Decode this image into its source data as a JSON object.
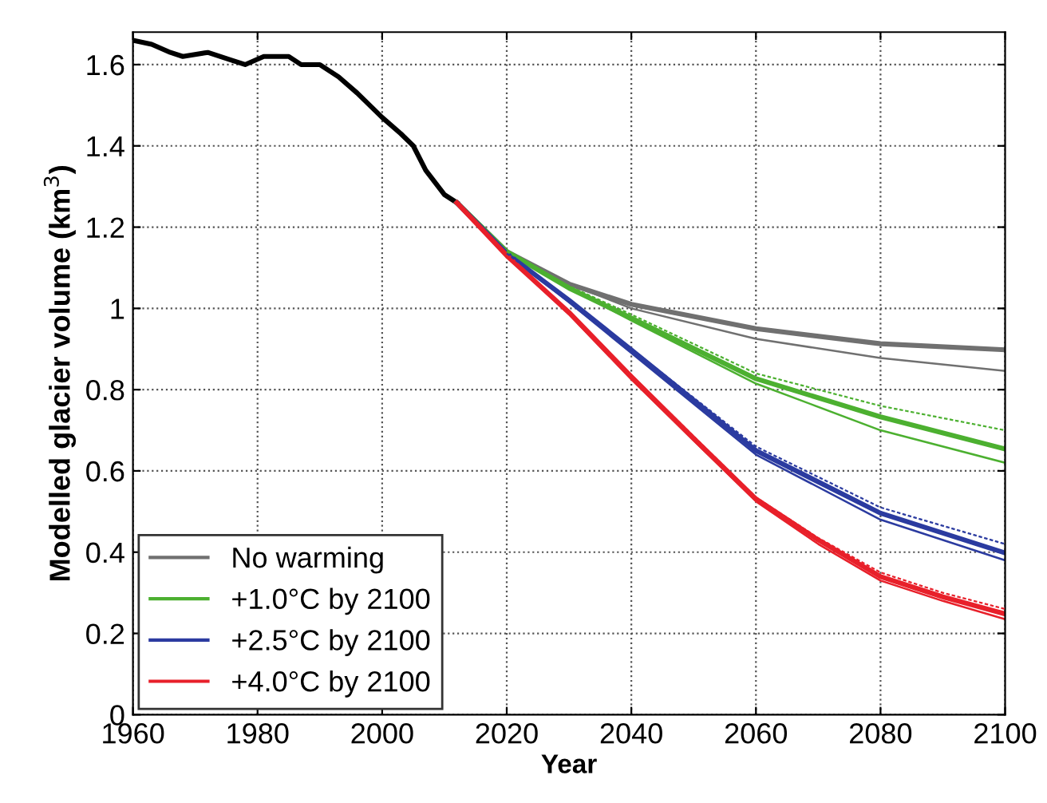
{
  "chart_data": {
    "type": "line",
    "xlabel": "Year",
    "ylabel": "Modelled glacier volume (km$^{3}$)",
    "xlim": [
      1960,
      2100
    ],
    "ylim": [
      0,
      1.68
    ],
    "xticks": [
      1960,
      1980,
      2000,
      2020,
      2040,
      2060,
      2080,
      2100
    ],
    "yticks": [
      0,
      0.2,
      0.4,
      0.6,
      0.8,
      1,
      1.2,
      1.4,
      1.6
    ],
    "grid": true,
    "legend": "bottom left",
    "marker": "none",
    "series": [
      {
        "color": "#000000",
        "x": [
          1960,
          1963,
          1966,
          1968,
          1972,
          1976,
          1978,
          1981,
          1985,
          1987,
          1990,
          1993,
          1996,
          2000,
          2003,
          2005,
          2007,
          2010,
          2012
        ],
        "values": [
          1.66,
          1.65,
          1.63,
          1.62,
          1.63,
          1.61,
          1.6,
          1.62,
          1.62,
          1.6,
          1.6,
          1.57,
          1.53,
          1.47,
          1.43,
          1.4,
          1.34,
          1.28,
          1.26
        ]
      },
      {
        "name": "No warming",
        "color": "#707070",
        "x": [
          2012,
          2020,
          2030,
          2040,
          2060,
          2080,
          2100
        ],
        "values": [
          1.26,
          1.14,
          1.06,
          1.01,
          0.95,
          0.913,
          0.898
        ]
      },
      {
        "color": "#707070",
        "x": [
          2012,
          2020,
          2030,
          2040,
          2060,
          2080,
          2100
        ],
        "values": [
          1.26,
          1.14,
          1.06,
          1.0,
          0.925,
          0.878,
          0.846
        ]
      },
      {
        "name": "+1.0°C by 2100",
        "color": "#4cb030",
        "x": [
          2012,
          2020,
          2030,
          2040,
          2060,
          2080,
          2100
        ],
        "values": [
          1.26,
          1.14,
          1.05,
          0.976,
          0.827,
          0.733,
          0.654
        ]
      },
      {
        "color": "#4cb030",
        "x": [
          2012,
          2020,
          2030,
          2040,
          2060,
          2080,
          2100
        ],
        "values": [
          1.26,
          1.14,
          1.05,
          0.97,
          0.815,
          0.7,
          0.62
        ]
      },
      {
        "color": "#4cb030",
        "line_style": "dashed",
        "x": [
          2020,
          2030,
          2040,
          2060,
          2080,
          2100
        ],
        "values": [
          1.14,
          1.055,
          0.985,
          0.84,
          0.76,
          0.7
        ]
      },
      {
        "name": "+2.5°C by 2100",
        "color": "#2b3ba0",
        "x": [
          2012,
          2020,
          2030,
          2040,
          2060,
          2080,
          2100
        ],
        "values": [
          1.26,
          1.135,
          1.02,
          0.898,
          0.65,
          0.496,
          0.398
        ]
      },
      {
        "color": "#2b3ba0",
        "x": [
          2012,
          2020,
          2030,
          2040,
          2060,
          2080,
          2100
        ],
        "values": [
          1.26,
          1.135,
          1.015,
          0.89,
          0.64,
          0.48,
          0.38
        ]
      },
      {
        "color": "#2b3ba0",
        "line_style": "dashed",
        "x": [
          2020,
          2030,
          2040,
          2060,
          2080,
          2100
        ],
        "values": [
          1.135,
          1.02,
          0.9,
          0.66,
          0.51,
          0.42
        ]
      },
      {
        "name": "+4.0°C by 2100",
        "color": "#e8202a",
        "x": [
          2012,
          2020,
          2030,
          2040,
          2050,
          2060,
          2070,
          2080,
          2090,
          2100
        ],
        "values": [
          1.26,
          1.13,
          0.99,
          0.832,
          0.68,
          0.531,
          0.43,
          0.34,
          0.29,
          0.248
        ]
      },
      {
        "color": "#e8202a",
        "x": [
          2012,
          2020,
          2030,
          2040,
          2050,
          2060,
          2070,
          2080,
          2090,
          2100
        ],
        "values": [
          1.26,
          1.13,
          0.985,
          0.825,
          0.675,
          0.525,
          0.42,
          0.33,
          0.28,
          0.235
        ]
      },
      {
        "color": "#e8202a",
        "line_style": "dashed",
        "x": [
          2020,
          2030,
          2040,
          2050,
          2060,
          2070,
          2080,
          2090,
          2100
        ],
        "values": [
          1.13,
          0.99,
          0.835,
          0.685,
          0.535,
          0.435,
          0.35,
          0.3,
          0.26
        ]
      }
    ]
  }
}
